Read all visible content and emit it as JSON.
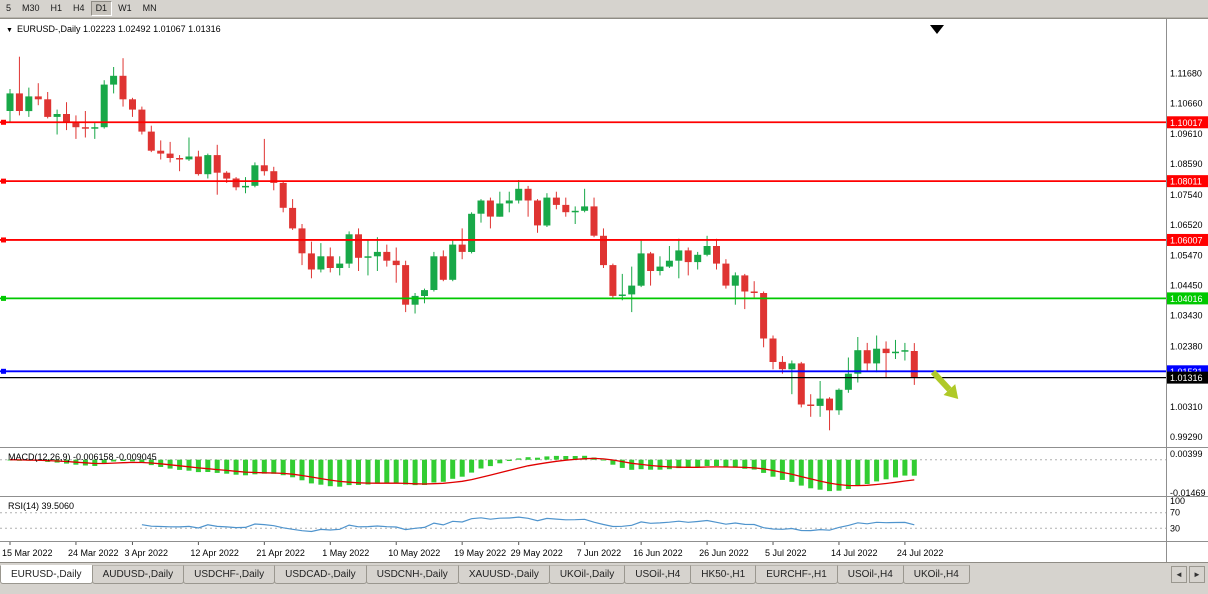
{
  "toolbar": {
    "timeframes": [
      {
        "label": "5",
        "active": false
      },
      {
        "label": "M30",
        "active": false
      },
      {
        "label": "H1",
        "active": false
      },
      {
        "label": "H4",
        "active": false
      },
      {
        "label": "D1",
        "active": true
      },
      {
        "label": "W1",
        "active": false
      },
      {
        "label": "MN",
        "active": false
      }
    ]
  },
  "chart_data": {
    "type": "candlestick",
    "symbol": "EURUSD",
    "timeframe": "Daily",
    "title": {
      "icon": "▼",
      "text": "EURUSD-,Daily  1.02223 1.02492 1.01067 1.01316",
      "open": "1.02223",
      "high": "1.02492",
      "low": "1.01067",
      "close": "1.01316"
    },
    "colors": {
      "bull": "#18A848",
      "bear": "#DF3432",
      "background": "#ffffff"
    },
    "price_range": {
      "top": 1.134,
      "bottom": 0.9902
    },
    "y_axis_labels": [
      "1.11680",
      "1.10660",
      "1.09610",
      "1.08590",
      "1.07540",
      "1.06520",
      "1.05470",
      "1.04450",
      "1.03430",
      "1.02380",
      "1.01360",
      "1.00310",
      "0.99290"
    ],
    "x_ticks": [
      {
        "i": 0,
        "label": "15 Mar 2022"
      },
      {
        "i": 7,
        "label": "24 Mar 2022"
      },
      {
        "i": 13,
        "label": "3 Apr 2022"
      },
      {
        "i": 20,
        "label": "12 Apr 2022"
      },
      {
        "i": 27,
        "label": "21 Apr 2022"
      },
      {
        "i": 34,
        "label": "1 May 2022"
      },
      {
        "i": 41,
        "label": "10 May 2022"
      },
      {
        "i": 48,
        "label": "19 May 2022"
      },
      {
        "i": 54,
        "label": "29 May 2022"
      },
      {
        "i": 61,
        "label": "7 Jun 2022"
      },
      {
        "i": 67,
        "label": "16 Jun 2022"
      },
      {
        "i": 74,
        "label": "26 Jun 2022"
      },
      {
        "i": 81,
        "label": "5 Jul 2022"
      },
      {
        "i": 88,
        "label": "14 Jul 2022"
      },
      {
        "i": 95,
        "label": "24 Jul 2022"
      }
    ],
    "candles": [
      [
        1.104,
        1.1115,
        1.1,
        1.11
      ],
      [
        1.11,
        1.1225,
        1.1025,
        1.104
      ],
      [
        1.104,
        1.112,
        1.102,
        1.109
      ],
      [
        1.109,
        1.1135,
        1.106,
        1.108
      ],
      [
        1.108,
        1.1105,
        1.1015,
        1.102
      ],
      [
        1.102,
        1.1045,
        1.096,
        1.103
      ],
      [
        1.103,
        1.107,
        1.0975,
        1.1
      ],
      [
        1.1,
        1.1025,
        1.0945,
        1.0985
      ],
      [
        1.0985,
        1.104,
        1.095,
        1.098
      ],
      [
        1.098,
        1.1,
        1.0945,
        1.0985
      ],
      [
        1.0985,
        1.1145,
        1.098,
        1.113
      ],
      [
        1.113,
        1.119,
        1.11,
        1.116
      ],
      [
        1.116,
        1.122,
        1.1055,
        1.108
      ],
      [
        1.108,
        1.1085,
        1.102,
        1.1045
      ],
      [
        1.1045,
        1.1055,
        1.096,
        1.097
      ],
      [
        1.097,
        1.099,
        1.09,
        1.0905
      ],
      [
        1.0905,
        1.094,
        1.0875,
        1.0895
      ],
      [
        1.0895,
        1.0935,
        1.0865,
        1.088
      ],
      [
        1.088,
        1.089,
        1.0835,
        1.0875
      ],
      [
        1.0875,
        1.095,
        1.087,
        1.0885
      ],
      [
        1.0885,
        1.0905,
        1.082,
        1.0825
      ],
      [
        1.0825,
        1.0895,
        1.081,
        1.089
      ],
      [
        1.089,
        1.0925,
        1.0755,
        1.083
      ],
      [
        1.083,
        1.0835,
        1.0795,
        1.081
      ],
      [
        1.081,
        1.0815,
        1.077,
        1.078
      ],
      [
        1.078,
        1.0815,
        1.076,
        1.0785
      ],
      [
        1.0785,
        1.0865,
        1.078,
        1.0855
      ],
      [
        1.0855,
        1.0945,
        1.082,
        1.0835
      ],
      [
        1.0835,
        1.085,
        1.077,
        1.0795
      ],
      [
        1.0795,
        1.08,
        1.0695,
        1.071
      ],
      [
        1.071,
        1.074,
        1.0635,
        1.064
      ],
      [
        1.064,
        1.0655,
        1.0515,
        1.0555
      ],
      [
        1.0555,
        1.0595,
        1.047,
        1.05
      ],
      [
        1.05,
        1.059,
        1.049,
        1.0545
      ],
      [
        1.0545,
        1.0575,
        1.049,
        1.0505
      ],
      [
        1.0505,
        1.0545,
        1.048,
        1.052
      ],
      [
        1.052,
        1.063,
        1.0505,
        1.062
      ],
      [
        1.062,
        1.064,
        1.0495,
        1.054
      ],
      [
        1.054,
        1.06,
        1.048,
        1.0545
      ],
      [
        1.0545,
        1.061,
        1.0495,
        1.056
      ],
      [
        1.056,
        1.0585,
        1.051,
        1.053
      ],
      [
        1.053,
        1.0575,
        1.0455,
        1.0515
      ],
      [
        1.0515,
        1.053,
        1.0355,
        1.038
      ],
      [
        1.038,
        1.042,
        1.035,
        1.041
      ],
      [
        1.041,
        1.0435,
        1.0385,
        1.043
      ],
      [
        1.043,
        1.056,
        1.0425,
        1.0545
      ],
      [
        1.0545,
        1.0565,
        1.046,
        1.0465
      ],
      [
        1.0465,
        1.06,
        1.046,
        1.0585
      ],
      [
        1.0585,
        1.064,
        1.0535,
        1.056
      ],
      [
        1.056,
        1.0695,
        1.0555,
        1.069
      ],
      [
        1.069,
        1.074,
        1.066,
        1.0735
      ],
      [
        1.0735,
        1.0745,
        1.064,
        1.068
      ],
      [
        1.068,
        1.0765,
        1.068,
        1.0725
      ],
      [
        1.0725,
        1.0765,
        1.0695,
        1.0735
      ],
      [
        1.0735,
        1.0805,
        1.0725,
        1.0775
      ],
      [
        1.0775,
        1.0785,
        1.068,
        1.0735
      ],
      [
        1.0735,
        1.074,
        1.0625,
        1.065
      ],
      [
        1.065,
        1.076,
        1.0645,
        1.0745
      ],
      [
        1.0745,
        1.0765,
        1.0705,
        1.072
      ],
      [
        1.072,
        1.0745,
        1.068,
        1.0695
      ],
      [
        1.0695,
        1.0715,
        1.0655,
        1.07
      ],
      [
        1.07,
        1.0775,
        1.0695,
        1.0715
      ],
      [
        1.0715,
        1.0745,
        1.061,
        1.0615
      ],
      [
        1.0615,
        1.064,
        1.0505,
        1.0515
      ],
      [
        1.0515,
        1.052,
        1.04,
        1.041
      ],
      [
        1.041,
        1.0485,
        1.0395,
        1.0415
      ],
      [
        1.0415,
        1.051,
        1.0355,
        1.0445
      ],
      [
        1.0445,
        1.06,
        1.044,
        1.0555
      ],
      [
        1.0555,
        1.056,
        1.0445,
        1.0495
      ],
      [
        1.0495,
        1.0545,
        1.048,
        1.051
      ],
      [
        1.051,
        1.058,
        1.0505,
        1.053
      ],
      [
        1.053,
        1.0605,
        1.047,
        1.0565
      ],
      [
        1.0565,
        1.0575,
        1.048,
        1.0525
      ],
      [
        1.0525,
        1.056,
        1.05,
        1.055
      ],
      [
        1.055,
        1.0615,
        1.0545,
        1.058
      ],
      [
        1.058,
        1.0605,
        1.05,
        1.052
      ],
      [
        1.052,
        1.0535,
        1.0435,
        1.0445
      ],
      [
        1.0445,
        1.049,
        1.038,
        1.048
      ],
      [
        1.048,
        1.0485,
        1.0365,
        1.0425
      ],
      [
        1.0425,
        1.046,
        1.0405,
        1.042
      ],
      [
        1.042,
        1.0425,
        1.0235,
        1.0265
      ],
      [
        1.0265,
        1.0275,
        1.016,
        1.0185
      ],
      [
        1.0185,
        1.0205,
        1.0145,
        1.016
      ],
      [
        1.016,
        1.019,
        1.0075,
        1.018
      ],
      [
        1.018,
        1.0185,
        1.003,
        1.004
      ],
      [
        1.004,
        1.0075,
        0.9998,
        1.0035
      ],
      [
        1.0035,
        1.012,
        0.9998,
        1.006
      ],
      [
        1.006,
        1.0065,
        0.9952,
        1.002
      ],
      [
        1.002,
        1.0095,
        1.0005,
        1.009
      ],
      [
        1.009,
        1.02,
        1.008,
        1.0145
      ],
      [
        1.0145,
        1.027,
        1.0115,
        1.0225
      ],
      [
        1.0225,
        1.025,
        1.0155,
        1.018
      ],
      [
        1.018,
        1.0275,
        1.015,
        1.023
      ],
      [
        1.023,
        1.0255,
        1.013,
        1.0215
      ],
      [
        1.0215,
        1.026,
        1.0195,
        1.022
      ],
      [
        1.022,
        1.025,
        1.019,
        1.0225
      ],
      [
        1.02223,
        1.02492,
        1.01067,
        1.01316
      ]
    ],
    "hlines": [
      {
        "price": 1.10017,
        "label": "1.10017",
        "color": "#FF0000"
      },
      {
        "price": 1.08011,
        "label": "1.08011",
        "color": "#FF0000"
      },
      {
        "price": 1.06007,
        "label": "1.06007",
        "color": "#FF0000"
      },
      {
        "price": 1.04016,
        "label": "1.04016",
        "color": "#00C800"
      },
      {
        "price": 1.01531,
        "label": "1.01531",
        "color": "#0000FF"
      }
    ],
    "price_line": {
      "price": 1.01316,
      "label": "1.01316",
      "color": "#000000"
    },
    "indicators": {
      "macd": {
        "text": "MACD(12,26,9) -0.006158 -0.009045",
        "fast": 12,
        "slow": 26,
        "signal_period": 9,
        "value": "-0.006158",
        "signal_value": "-0.009045",
        "axis_labels": [
          "0.00399",
          "-0.01469"
        ],
        "bar_color": "#32CD32",
        "line_color": "#E00000"
      },
      "rsi": {
        "text": "RSI(14) 39.5060",
        "period": 14,
        "value": "39.5060",
        "levels": [
          70,
          30
        ],
        "axis_labels": [
          "100",
          "70",
          "30"
        ],
        "line_color": "#4F94CD"
      }
    },
    "arrow": {
      "color": "#AFC927",
      "direction": "down-right"
    }
  },
  "tabs": {
    "items": [
      {
        "label": "EURUSD-,Daily",
        "active": true
      },
      {
        "label": "AUDUSD-,Daily",
        "active": false
      },
      {
        "label": "USDCHF-,Daily",
        "active": false
      },
      {
        "label": "USDCAD-,Daily",
        "active": false
      },
      {
        "label": "USDCNH-,Daily",
        "active": false
      },
      {
        "label": "XAUUSD-,Daily",
        "active": false
      },
      {
        "label": "UKOil-,Daily",
        "active": false
      },
      {
        "label": "USOil-,H4",
        "active": false
      },
      {
        "label": "HK50-,H1",
        "active": false
      },
      {
        "label": "EURCHF-,H1",
        "active": false
      },
      {
        "label": "USOil-,H4",
        "active": false
      },
      {
        "label": "UKOil-,H4",
        "active": false
      }
    ],
    "scroll_left": "◄",
    "scroll_right": "►"
  }
}
